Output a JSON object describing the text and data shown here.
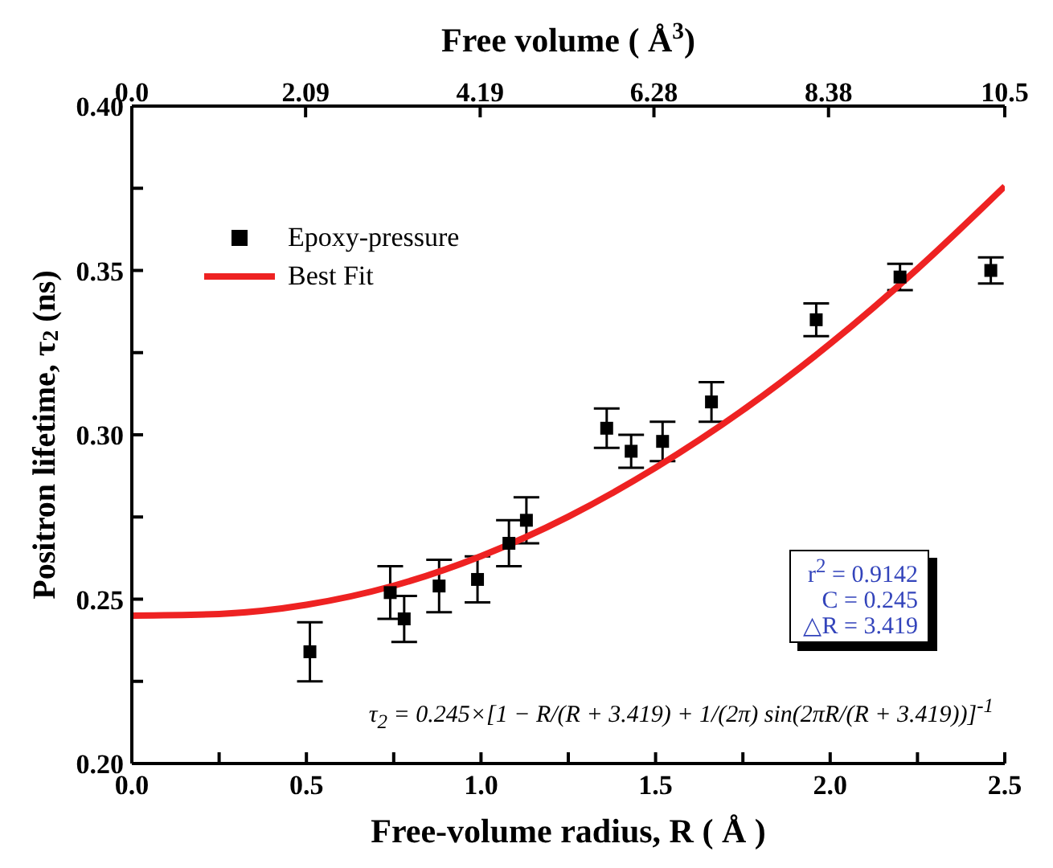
{
  "chart_data": {
    "type": "scatter",
    "xlabel": "Free-volume radius, R ( Å )",
    "ylabel": "Positron lifetime, τ$_{2}$ (ns)",
    "x2label": "Free volume  ( Å$^{3}$)",
    "xlim": [
      0,
      2.5
    ],
    "xticks": [
      {
        "value": 0,
        "label": "0.0"
      },
      {
        "value": 0.25,
        "label": null
      },
      {
        "value": 0.5,
        "label": "0.5"
      },
      {
        "value": 0.75,
        "label": null
      },
      {
        "value": 1,
        "label": "1.0"
      },
      {
        "value": 1.25,
        "label": null
      },
      {
        "value": 1.5,
        "label": "1.5"
      },
      {
        "value": 1.75,
        "label": null
      },
      {
        "value": 2,
        "label": "2.0"
      },
      {
        "value": 2.25,
        "label": null
      },
      {
        "value": 2.5,
        "label": "2.5"
      }
    ],
    "x2lim": [
      0,
      10.5
    ],
    "x2ticks": [
      {
        "value": 0,
        "label": "0.0"
      },
      2.09,
      4.19,
      6.28,
      8.38,
      10.5
    ],
    "ylim": [
      0.2,
      0.4
    ],
    "yticks": [
      {
        "value": 0.2,
        "label": "0.20"
      },
      {
        "value": 0.225,
        "label": null
      },
      {
        "value": 0.25,
        "label": "0.25"
      },
      {
        "value": 0.275,
        "label": null
      },
      {
        "value": 0.3,
        "label": "0.30"
      },
      {
        "value": 0.325,
        "label": null
      },
      {
        "value": 0.35,
        "label": "0.35"
      },
      {
        "value": 0.375,
        "label": null
      },
      {
        "value": 0.4,
        "label": "0.40"
      }
    ],
    "legend": "top left",
    "grid": false,
    "series": [
      {
        "name": "Epoxy-pressure",
        "marker": "square",
        "color": "#000000",
        "x": [
          0.51,
          0.74,
          0.78,
          0.88,
          0.99,
          1.08,
          1.13,
          1.36,
          1.43,
          1.52,
          1.66,
          1.96,
          2.2,
          2.46
        ],
        "values": [
          0.234,
          0.252,
          0.244,
          0.254,
          0.256,
          0.267,
          0.274,
          0.302,
          0.295,
          0.298,
          0.31,
          0.335,
          0.348,
          0.35
        ],
        "errors": [
          0.009,
          0.008,
          0.007,
          0.008,
          0.007,
          0.007,
          0.007,
          0.006,
          0.005,
          0.006,
          0.006,
          0.005,
          0.004,
          0.004
        ]
      },
      {
        "name": "Best Fit",
        "type": "line",
        "color": "#ee2222",
        "x": [
          0,
          0.25,
          0.5,
          0.75,
          1,
          1.25,
          1.5,
          1.75,
          2,
          2.25,
          2.5
        ],
        "values": [
          0.245,
          0.2455,
          0.2483,
          0.2541,
          0.2631,
          0.2751,
          0.29,
          0.3075,
          0.3277,
          0.3505,
          0.3756
        ]
      }
    ],
    "annotations": [
      "r$^{2}$ = 0.9142",
      "C = 0.245",
      "△R = 3.419",
      "τ$_{2}$ = 0.245×[1 − R/(R + 3.419) + 1/(2π) sin(2πR/(R + 3.419))]$^{-1}$"
    ]
  }
}
